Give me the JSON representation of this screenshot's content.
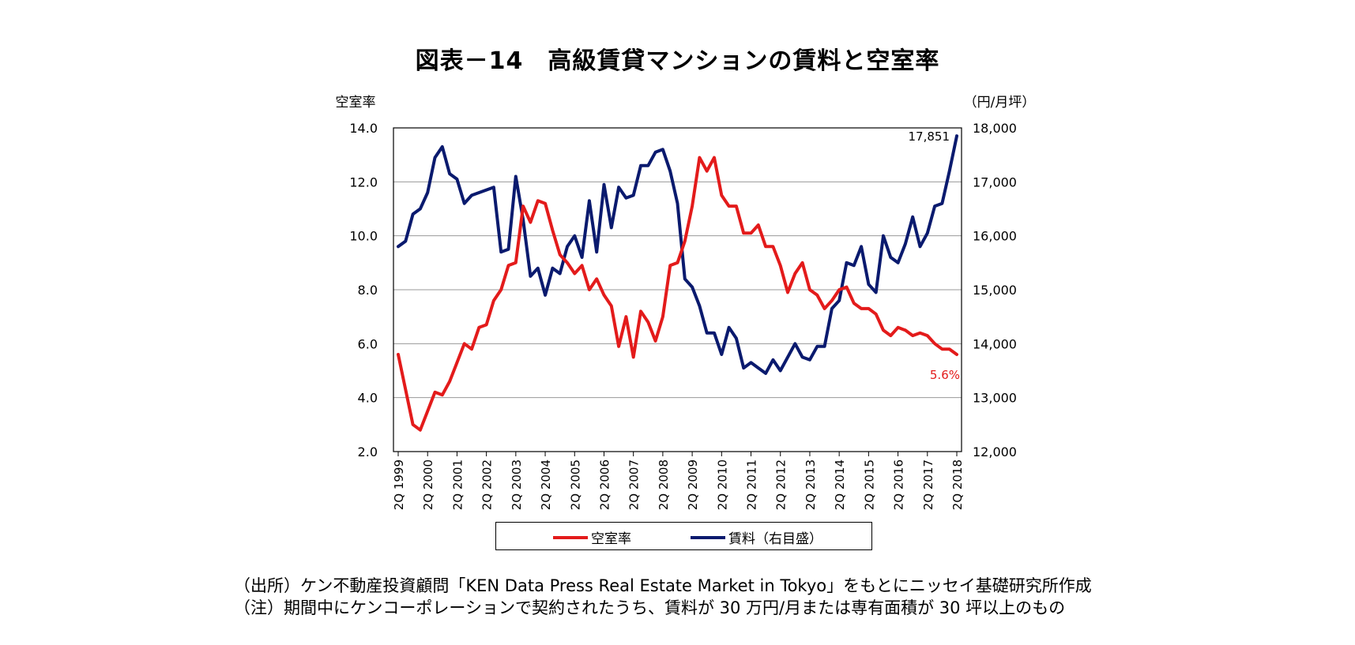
{
  "title": "図表－14　高級賃貸マンションの賃料と空室率",
  "notes": {
    "source": "（出所）ケン不動産投資顧問「KEN Data Press Real Estate Market in Tokyo」をもとにニッセイ基礎研究所作成",
    "note": "（注）期間中にケンコーポレーションで契約されたうち、賃料が 30 万円/月または専有面積が 30 坪以上のもの"
  },
  "colors": {
    "vacancy": "#e31b1b",
    "rent": "#0a1a6e",
    "grid": "#999999"
  },
  "chart_data": {
    "type": "line",
    "title": "図表－14　高級賃貸マンションの賃料と空室率",
    "left_axis_label": "空室率",
    "right_axis_label": "（円/月坪）",
    "left_ylim": [
      2.0,
      14.0
    ],
    "right_ylim": [
      12000,
      18000
    ],
    "left_ticks": [
      "14.0",
      "12.0",
      "10.0",
      "8.0",
      "6.0",
      "4.0",
      "2.0"
    ],
    "right_ticks": [
      "18,000",
      "17,000",
      "16,000",
      "15,000",
      "14,000",
      "13,000",
      "12,000"
    ],
    "x_tick_labels": [
      "2Q 1999",
      "2Q 2000",
      "2Q 2001",
      "2Q 2002",
      "2Q 2003",
      "2Q 2004",
      "2Q 2005",
      "2Q 2006",
      "2Q 2007",
      "2Q 2008",
      "2Q 2009",
      "2Q 2010",
      "2Q 2011",
      "2Q 2012",
      "2Q 2013",
      "2Q 2014",
      "2Q 2015",
      "2Q 2016",
      "2Q 2017",
      "2Q 2018"
    ],
    "grid": "horizontal",
    "legend_position": "bottom",
    "legend": [
      "空室率",
      "賃料（右目盛）"
    ],
    "annotations": {
      "rent_last": "17,851",
      "vacancy_last": "5.6%"
    },
    "series": [
      {
        "name": "空室率",
        "axis": "left",
        "values": [
          5.6,
          4.3,
          3.0,
          2.8,
          3.5,
          4.2,
          4.1,
          4.6,
          5.3,
          6.0,
          5.8,
          6.6,
          6.7,
          7.6,
          8.0,
          8.9,
          9.0,
          11.1,
          10.5,
          11.3,
          11.2,
          10.2,
          9.3,
          9.0,
          8.6,
          8.9,
          8.0,
          8.4,
          7.8,
          7.4,
          5.9,
          7.0,
          5.5,
          7.2,
          6.8,
          6.1,
          7.0,
          8.9,
          9.0,
          9.8,
          11.1,
          12.9,
          12.4,
          12.9,
          11.5,
          11.1,
          11.1,
          10.1,
          10.1,
          10.4,
          9.6,
          9.6,
          8.9,
          7.9,
          8.6,
          9.0,
          8.0,
          7.8,
          7.3,
          7.6,
          8.0,
          8.1,
          7.5,
          7.3,
          7.3,
          7.1,
          6.5,
          6.3,
          6.6,
          6.5,
          6.3,
          6.4,
          6.3,
          6.0,
          5.8,
          5.8,
          5.6
        ]
      },
      {
        "name": "賃料（右目盛）",
        "axis": "right",
        "values": [
          15800,
          15900,
          16400,
          16500,
          16800,
          17450,
          17650,
          17150,
          17050,
          16600,
          16750,
          16800,
          16850,
          16900,
          15700,
          15750,
          17100,
          16300,
          15250,
          15400,
          14900,
          15400,
          15300,
          15800,
          16000,
          15600,
          16650,
          15700,
          16950,
          16150,
          16900,
          16700,
          16750,
          17300,
          17300,
          17550,
          17600,
          17200,
          16600,
          15200,
          15050,
          14700,
          14200,
          14200,
          13800,
          14300,
          14100,
          13550,
          13650,
          13550,
          13450,
          13700,
          13500,
          13750,
          14000,
          13750,
          13700,
          13950,
          13950,
          14650,
          14800,
          15500,
          15450,
          15800,
          15100,
          14950,
          16000,
          15600,
          15500,
          15850,
          16350,
          15800,
          16050,
          16550,
          16600,
          17200,
          17851
        ]
      }
    ]
  }
}
